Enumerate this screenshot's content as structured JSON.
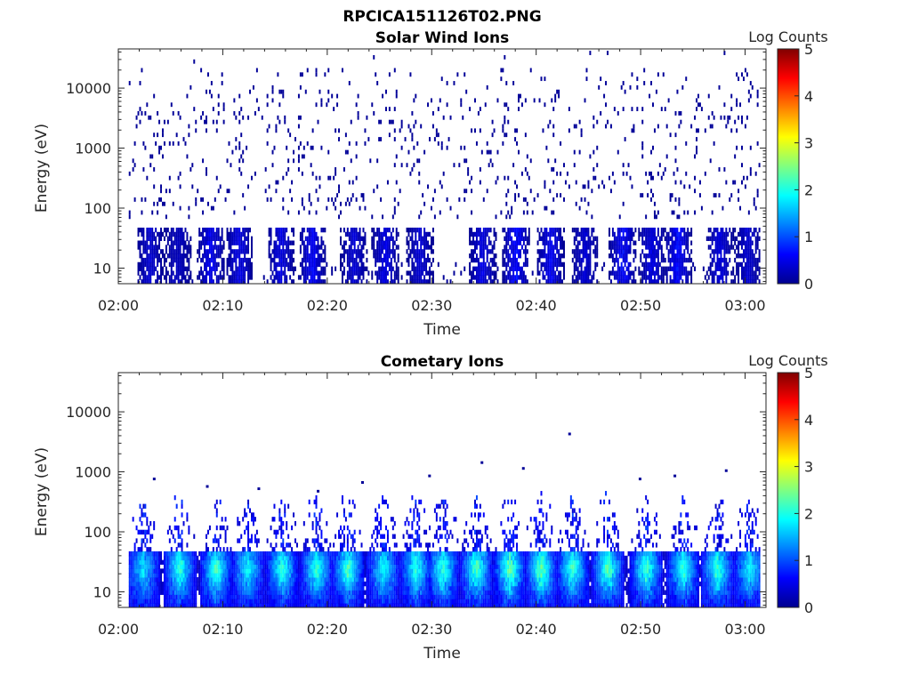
{
  "figure": {
    "title": "RPCICA151126T02.PNG"
  },
  "colorbar": {
    "label": "Log Counts",
    "ticks": [
      "0",
      "1",
      "2",
      "3",
      "4",
      "5"
    ],
    "range": [
      0,
      5
    ],
    "colormap": [
      "#00008f",
      "#0000ff",
      "#0080ff",
      "#00ffff",
      "#80ff80",
      "#ffff00",
      "#ff8000",
      "#ff0000",
      "#800000"
    ]
  },
  "chart_data": [
    {
      "type": "heatmap",
      "title": "Solar Wind Ions",
      "xlabel": "Time",
      "ylabel": "Energy (eV)",
      "x_ticks": [
        "02:00",
        "02:10",
        "02:20",
        "02:30",
        "02:40",
        "02:50",
        "03:00"
      ],
      "x_range_minutes": [
        0,
        62
      ],
      "y_ticks": [
        "10",
        "100",
        "1000",
        "10000"
      ],
      "y_scale": "log",
      "y_range": [
        5.5,
        45000
      ],
      "color_scale": "Log Counts",
      "description_values": {
        "data_start_minute": 1,
        "data_end_minute": 61.3,
        "background_log_counts": 0,
        "bursts": [
          {
            "center_minute": 3.0,
            "log_counts": 0.4
          },
          {
            "center_minute": 5.6,
            "log_counts": 0.3
          },
          {
            "center_minute": 8.8,
            "log_counts": 0.6
          },
          {
            "center_minute": 11.5,
            "log_counts": 0.5
          },
          {
            "center_minute": 15.5,
            "log_counts": 0.5
          },
          {
            "center_minute": 18.5,
            "log_counts": 0.6
          },
          {
            "center_minute": 22.5,
            "log_counts": 0.4
          },
          {
            "center_minute": 25.5,
            "log_counts": 0.5
          },
          {
            "center_minute": 28.8,
            "log_counts": 0.4
          },
          {
            "center_minute": 34.8,
            "log_counts": 0.5
          },
          {
            "center_minute": 38.0,
            "log_counts": 0.7
          },
          {
            "center_minute": 41.3,
            "log_counts": 0.6
          },
          {
            "center_minute": 44.6,
            "log_counts": 0.4
          },
          {
            "center_minute": 48.2,
            "log_counts": 0.7
          },
          {
            "center_minute": 51.0,
            "log_counts": 0.5
          },
          {
            "center_minute": 53.5,
            "log_counts": 0.7
          },
          {
            "center_minute": 57.5,
            "log_counts": 0.5
          },
          {
            "center_minute": 60.2,
            "log_counts": 0.4
          }
        ]
      }
    },
    {
      "type": "heatmap",
      "title": "Cometary Ions",
      "xlabel": "Time",
      "ylabel": "Energy (eV)",
      "x_ticks": [
        "02:00",
        "02:10",
        "02:20",
        "02:30",
        "02:40",
        "02:50",
        "03:00"
      ],
      "x_range_minutes": [
        0,
        62
      ],
      "y_ticks": [
        "10",
        "100",
        "1000",
        "10000"
      ],
      "y_scale": "log",
      "y_range": [
        5.5,
        45000
      ],
      "color_scale": "Log Counts",
      "description_values": {
        "data_start_minute": 1,
        "data_end_minute": 61.3,
        "bursts": [
          {
            "center_minute": 2.3,
            "log_counts": 1.3
          },
          {
            "center_minute": 5.8,
            "log_counts": 1.7
          },
          {
            "center_minute": 9.3,
            "log_counts": 1.8
          },
          {
            "center_minute": 12.3,
            "log_counts": 1.5
          },
          {
            "center_minute": 15.6,
            "log_counts": 1.7
          },
          {
            "center_minute": 18.9,
            "log_counts": 1.7
          },
          {
            "center_minute": 21.9,
            "log_counts": 1.8
          },
          {
            "center_minute": 25.3,
            "log_counts": 1.5
          },
          {
            "center_minute": 28.4,
            "log_counts": 1.6
          },
          {
            "center_minute": 31.0,
            "log_counts": 1.7
          },
          {
            "center_minute": 34.2,
            "log_counts": 1.9
          },
          {
            "center_minute": 37.4,
            "log_counts": 2.0
          },
          {
            "center_minute": 40.4,
            "log_counts": 2.0
          },
          {
            "center_minute": 43.4,
            "log_counts": 1.8
          },
          {
            "center_minute": 46.8,
            "log_counts": 1.9
          },
          {
            "center_minute": 50.5,
            "log_counts": 1.8
          },
          {
            "center_minute": 54.0,
            "log_counts": 1.7
          },
          {
            "center_minute": 57.3,
            "log_counts": 1.8
          },
          {
            "center_minute": 60.4,
            "log_counts": 1.5
          }
        ],
        "isolated_high_points_eV": [
          800,
          600,
          550,
          500,
          700,
          900,
          1500,
          1200,
          4500,
          800,
          900,
          1100
        ]
      }
    }
  ]
}
